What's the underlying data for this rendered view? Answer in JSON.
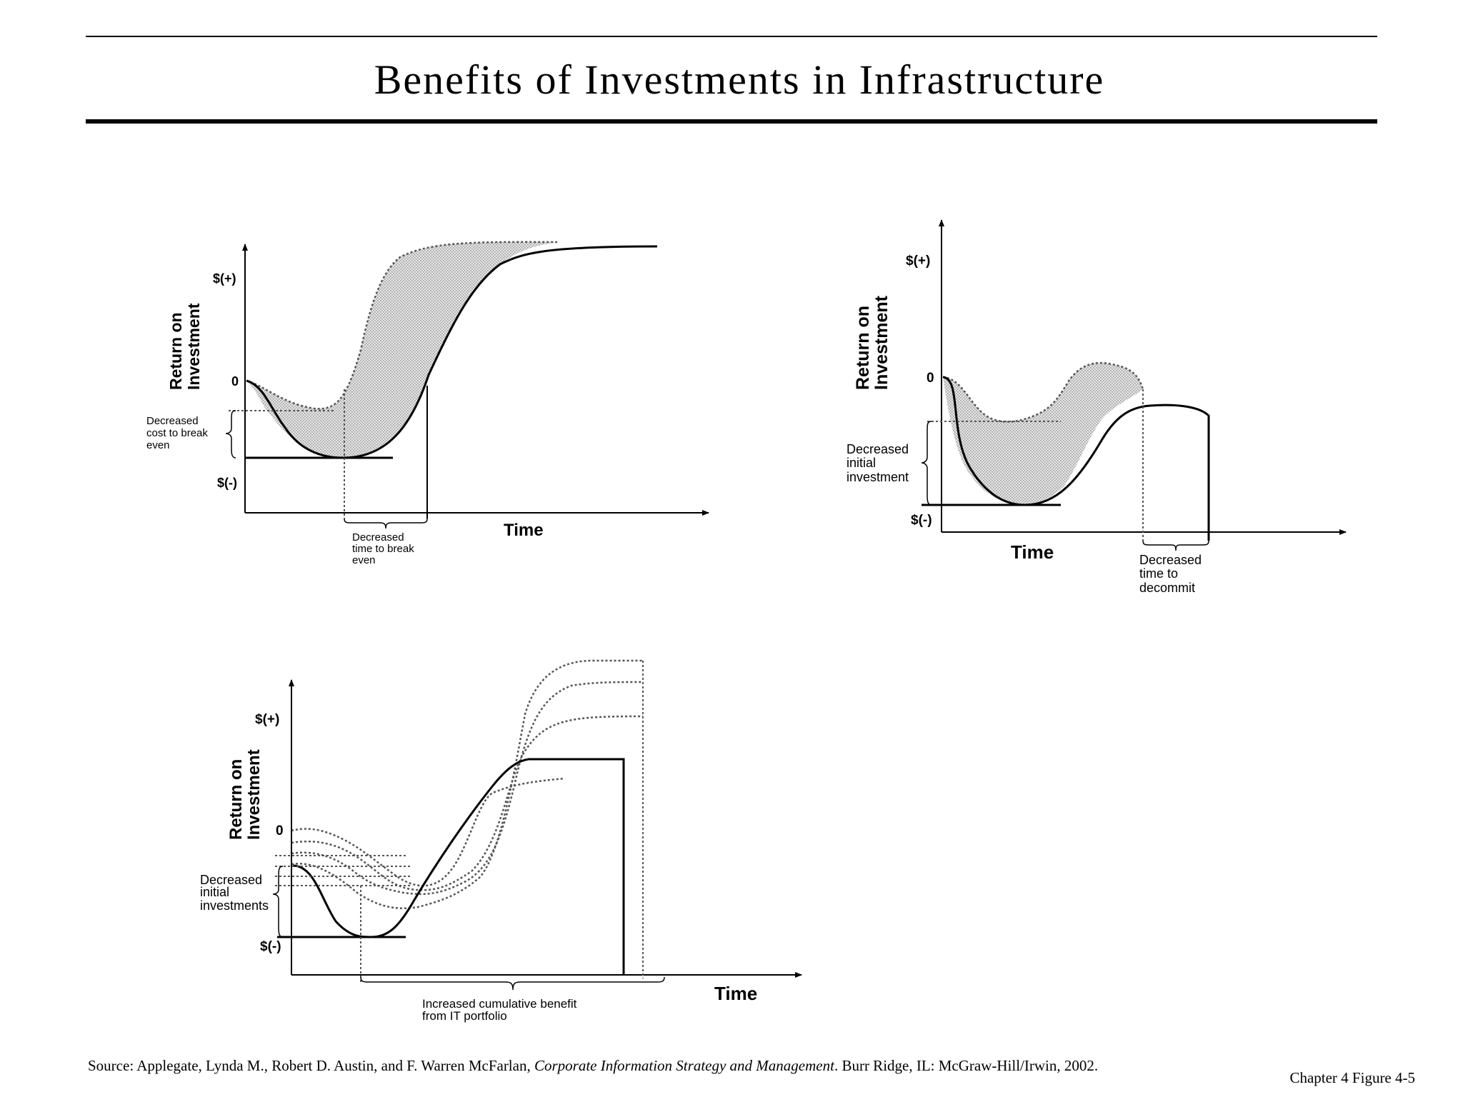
{
  "slide": {
    "title": "Benefits of Investments in Infrastructure",
    "source": {
      "prefix": "Source: Applegate, Lynda M., Robert D. Austin, and F. Warren McFarlan, ",
      "book_title": "Corporate Information Strategy and Management",
      "suffix": ". Burr Ridge, IL: McGraw-Hill/Irwin, 2002."
    },
    "figure_ref": "Chapter 4 Figure 4-5"
  },
  "diagram1": {
    "ylabel_line1": "Return on",
    "ylabel_line2": "Investment",
    "tick_pos": "$(+)",
    "tick_zero": "0",
    "tick_neg": "$(-)",
    "xlabel": "Time",
    "note_cost_1": "Decreased",
    "note_cost_2": "cost to break",
    "note_cost_3": "even",
    "note_time_1": "Decreased",
    "note_time_2": "time to break",
    "note_time_3": "even"
  },
  "diagram2": {
    "ylabel_line1": "Return on",
    "ylabel_line2": "Investment",
    "tick_pos": "$(+)",
    "tick_zero": "0",
    "tick_neg": "$(-)",
    "xlabel": "Time",
    "note_invest_1": "Decreased",
    "note_invest_2": "initial",
    "note_invest_3": "investment",
    "note_decommit_1": "Decreased",
    "note_decommit_2": "time to",
    "note_decommit_3": "decommit"
  },
  "diagram3": {
    "ylabel_line1": "Return on",
    "ylabel_line2": "Investment",
    "tick_pos": "$(+)",
    "tick_zero": "0",
    "tick_neg": "$(-)",
    "xlabel": "Time",
    "note_invest_1": "Decreased",
    "note_invest_2": "initial",
    "note_invest_3": "investments",
    "note_benefit_1": "Increased cumulative benefit",
    "note_benefit_2": "from IT portfolio"
  }
}
